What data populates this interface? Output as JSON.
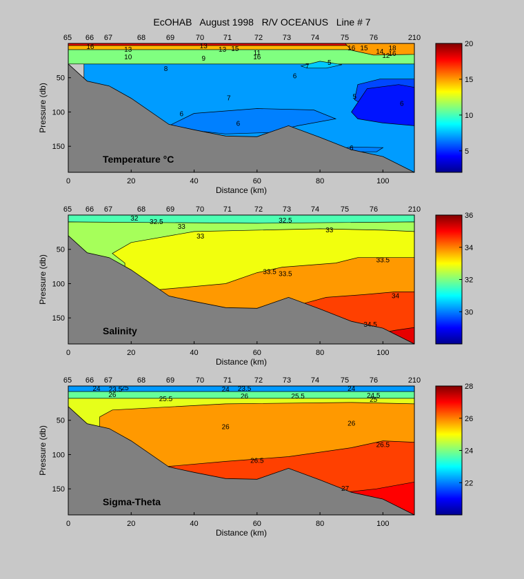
{
  "figure_title": "EcOHAB   August 1998   R/V OCEANUS   Line # 7",
  "colors": {
    "background": "#c8c8c8",
    "bathymetry": "#808080",
    "colormap": [
      "#00008f",
      "#0000ff",
      "#0080ff",
      "#00ffff",
      "#80ff80",
      "#ffff00",
      "#ff8000",
      "#ff0000",
      "#800000"
    ]
  },
  "chart_data": [
    {
      "type": "contour",
      "panel_label": "Temperature °C",
      "xlabel": "Distance (km)",
      "ylabel": "Pressure (db)",
      "xlim": [
        0,
        110
      ],
      "ylim": [
        188,
        0
      ],
      "x_ticks": [
        "0",
        "20",
        "40",
        "60",
        "80",
        "100"
      ],
      "y_ticks": [
        "50",
        "100",
        "150"
      ],
      "stations": [
        "65",
        "66",
        "67",
        "68",
        "69",
        "70",
        "71",
        "72",
        "73",
        "74",
        "75",
        "76",
        "210"
      ],
      "colorbar": {
        "min": 2,
        "max": 20,
        "ticks": [
          "5",
          "10",
          "15",
          "20"
        ]
      },
      "fields": [
        {
          "value": 5.5,
          "polygon": [
            [
              28,
              188
            ],
            [
              28,
              10
            ],
            [
              110,
              10
            ],
            [
              110,
              188
            ]
          ]
        },
        {
          "value": 7.0,
          "polygon": [
            [
              5,
              30
            ],
            [
              110,
              30
            ],
            [
              110,
              52
            ],
            [
              99,
              52
            ],
            [
              92,
              60
            ],
            [
              91,
              82
            ],
            [
              96,
              96
            ],
            [
              110,
              96
            ],
            [
              110,
              188
            ],
            [
              5,
              188
            ]
          ]
        },
        {
          "value": 11.0,
          "polygon": [
            [
              0,
              0
            ],
            [
              110,
              0
            ],
            [
              110,
              30
            ],
            [
              0,
              30
            ]
          ]
        },
        {
          "value": 14.5,
          "polygon": [
            [
              0,
              0
            ],
            [
              110,
              0
            ],
            [
              110,
              9
            ],
            [
              0,
              9
            ]
          ]
        },
        {
          "value": 18.0,
          "polygon": [
            [
              0,
              0
            ],
            [
              110,
              0
            ],
            [
              110,
              3
            ],
            [
              0,
              3
            ]
          ]
        },
        {
          "value": 6.5,
          "polygon": [
            [
              32,
              120
            ],
            [
              40,
              102
            ],
            [
              60,
              95
            ],
            [
              78,
              97
            ],
            [
              85,
              110
            ],
            [
              73,
              120
            ],
            [
              64,
              130
            ],
            [
              50,
              132
            ],
            [
              38,
              126
            ]
          ]
        },
        {
          "value": 4.6,
          "polygon": [
            [
              90,
              100
            ],
            [
              95,
              66
            ],
            [
              105,
              60
            ],
            [
              110,
              64
            ],
            [
              110,
              120
            ],
            [
              100,
              116
            ],
            [
              92,
              110
            ]
          ]
        },
        {
          "value": 6.5,
          "polygon": [
            [
              84,
              155
            ],
            [
              90,
              151
            ],
            [
              100,
              152
            ],
            [
              98,
              158
            ],
            [
              86,
              158
            ]
          ]
        },
        {
          "value": 7.8,
          "polygon": [
            [
              74,
              33
            ],
            [
              80,
              26
            ],
            [
              87,
              31
            ],
            [
              82,
              36
            ],
            [
              76,
              36
            ]
          ]
        },
        {
          "value": 15.0,
          "polygon": [
            [
              88,
              0
            ],
            [
              110,
              0
            ],
            [
              110,
              16
            ],
            [
              97,
              17
            ],
            [
              90,
              10
            ]
          ]
        }
      ],
      "contour_labels": [
        {
          "text": "16",
          "x": 7,
          "y": 5
        },
        {
          "text": "13",
          "x": 19,
          "y": 9
        },
        {
          "text": "10",
          "x": 19,
          "y": 20
        },
        {
          "text": "13",
          "x": 43,
          "y": 4
        },
        {
          "text": "13",
          "x": 49,
          "y": 9
        },
        {
          "text": "15",
          "x": 53,
          "y": 8
        },
        {
          "text": "11",
          "x": 60,
          "y": 14
        },
        {
          "text": "16",
          "x": 60,
          "y": 20
        },
        {
          "text": "9",
          "x": 43,
          "y": 22
        },
        {
          "text": "8",
          "x": 31,
          "y": 37
        },
        {
          "text": "7",
          "x": 76,
          "y": 33
        },
        {
          "text": "6",
          "x": 72,
          "y": 48
        },
        {
          "text": "5",
          "x": 83,
          "y": 28
        },
        {
          "text": "16",
          "x": 90,
          "y": 7
        },
        {
          "text": "15",
          "x": 94,
          "y": 7
        },
        {
          "text": "14",
          "x": 99,
          "y": 12
        },
        {
          "text": "12",
          "x": 101,
          "y": 18
        },
        {
          "text": "18",
          "x": 103,
          "y": 7
        },
        {
          "text": "16",
          "x": 103,
          "y": 15
        },
        {
          "text": "7",
          "x": 51,
          "y": 80
        },
        {
          "text": "6",
          "x": 36,
          "y": 103
        },
        {
          "text": "6",
          "x": 54,
          "y": 117
        },
        {
          "text": "5",
          "x": 91,
          "y": 78
        },
        {
          "text": "6",
          "x": 106,
          "y": 88
        },
        {
          "text": "6",
          "x": 90,
          "y": 153
        }
      ]
    },
    {
      "type": "contour",
      "panel_label": "Salinity",
      "xlabel": "Distance (km)",
      "ylabel": "Pressure (db)",
      "xlim": [
        0,
        110
      ],
      "ylim": [
        188,
        0
      ],
      "x_ticks": [
        "0",
        "20",
        "40",
        "60",
        "80",
        "100"
      ],
      "y_ticks": [
        "50",
        "100",
        "150"
      ],
      "stations": [
        "65",
        "66",
        "67",
        "68",
        "69",
        "70",
        "71",
        "72",
        "73",
        "74",
        "75",
        "76",
        "210"
      ],
      "colorbar": {
        "min": 28,
        "max": 36,
        "ticks": [
          "30",
          "32",
          "34",
          "36"
        ]
      },
      "fields": [
        {
          "value": 31.6,
          "polygon": [
            [
              0,
              0
            ],
            [
              110,
              0
            ],
            [
              110,
              188
            ],
            [
              0,
              188
            ]
          ]
        },
        {
          "value": 32.3,
          "polygon": [
            [
              0,
              10
            ],
            [
              60,
              12
            ],
            [
              110,
              10
            ],
            [
              110,
              188
            ],
            [
              0,
              188
            ]
          ]
        },
        {
          "value": 32.9,
          "polygon": [
            [
              18,
              70
            ],
            [
              14,
              56
            ],
            [
              20,
              40
            ],
            [
              40,
              24
            ],
            [
              80,
              20
            ],
            [
              100,
              22
            ],
            [
              110,
              24
            ],
            [
              110,
              188
            ],
            [
              18,
              188
            ]
          ]
        },
        {
          "value": 33.8,
          "polygon": [
            [
              26,
              110
            ],
            [
              50,
              100
            ],
            [
              60,
              84
            ],
            [
              68,
              76
            ],
            [
              85,
              70
            ],
            [
              92,
              62
            ],
            [
              110,
              62
            ],
            [
              110,
              188
            ],
            [
              26,
              188
            ]
          ]
        },
        {
          "value": 34.5,
          "polygon": [
            [
              74,
              130
            ],
            [
              82,
              120
            ],
            [
              94,
              116
            ],
            [
              104,
              112
            ],
            [
              110,
              112
            ],
            [
              110,
              188
            ],
            [
              74,
              188
            ]
          ]
        },
        {
          "value": 35.2,
          "polygon": [
            [
              96,
              175
            ],
            [
              104,
              168
            ],
            [
              110,
              164
            ],
            [
              110,
              188
            ],
            [
              96,
              188
            ]
          ]
        }
      ],
      "contour_labels": [
        {
          "text": "32",
          "x": 21,
          "y": 5
        },
        {
          "text": "32.5",
          "x": 28,
          "y": 10
        },
        {
          "text": "33",
          "x": 36,
          "y": 17
        },
        {
          "text": "33",
          "x": 42,
          "y": 31
        },
        {
          "text": "32.5",
          "x": 69,
          "y": 8
        },
        {
          "text": "33",
          "x": 83,
          "y": 22
        },
        {
          "text": "33.5",
          "x": 64,
          "y": 83
        },
        {
          "text": "33.5",
          "x": 69,
          "y": 86
        },
        {
          "text": "33.5",
          "x": 100,
          "y": 66
        },
        {
          "text": "34",
          "x": 104,
          "y": 118
        },
        {
          "text": "34.5",
          "x": 96,
          "y": 160
        }
      ]
    },
    {
      "type": "contour",
      "panel_label": "Sigma-Theta",
      "xlabel": "Distance (km)",
      "ylabel": "Pressure (db)",
      "xlim": [
        0,
        110
      ],
      "ylim": [
        188,
        0
      ],
      "x_ticks": [
        "0",
        "20",
        "40",
        "60",
        "80",
        "100"
      ],
      "y_ticks": [
        "50",
        "100",
        "150"
      ],
      "stations": [
        "65",
        "66",
        "67",
        "68",
        "69",
        "70",
        "71",
        "72",
        "73",
        "74",
        "75",
        "76",
        "210"
      ],
      "colorbar": {
        "min": 20,
        "max": 28,
        "ticks": [
          "22",
          "24",
          "26",
          "28"
        ]
      },
      "fields": [
        {
          "value": 22.2,
          "polygon": [
            [
              0,
              0
            ],
            [
              110,
              0
            ],
            [
              110,
              188
            ],
            [
              0,
              188
            ]
          ]
        },
        {
          "value": 23.8,
          "polygon": [
            [
              0,
              8
            ],
            [
              110,
              8
            ],
            [
              110,
              188
            ],
            [
              0,
              188
            ]
          ]
        },
        {
          "value": 24.8,
          "polygon": [
            [
              0,
              18
            ],
            [
              110,
              18
            ],
            [
              110,
              188
            ],
            [
              0,
              188
            ]
          ]
        },
        {
          "value": 25.8,
          "polygon": [
            [
              10,
              45
            ],
            [
              14,
              35
            ],
            [
              50,
              26
            ],
            [
              90,
              24
            ],
            [
              110,
              26
            ],
            [
              110,
              188
            ],
            [
              10,
              188
            ]
          ]
        },
        {
          "value": 26.5,
          "polygon": [
            [
              30,
              118
            ],
            [
              50,
              110
            ],
            [
              70,
              103
            ],
            [
              90,
              90
            ],
            [
              100,
              80
            ],
            [
              110,
              82
            ],
            [
              110,
              188
            ],
            [
              30,
              188
            ]
          ]
        },
        {
          "value": 27.0,
          "polygon": [
            [
              88,
              155
            ],
            [
              98,
              150
            ],
            [
              110,
              140
            ],
            [
              110,
              188
            ],
            [
              88,
              188
            ]
          ]
        }
      ],
      "contour_labels": [
        {
          "text": "24",
          "x": 9,
          "y": 4
        },
        {
          "text": "23.5",
          "x": 15,
          "y": 5
        },
        {
          "text": "25",
          "x": 18,
          "y": 3
        },
        {
          "text": "26",
          "x": 14,
          "y": 13
        },
        {
          "text": "25.5",
          "x": 31,
          "y": 19
        },
        {
          "text": "24",
          "x": 50,
          "y": 5
        },
        {
          "text": "23.5",
          "x": 56,
          "y": 4
        },
        {
          "text": "26",
          "x": 56,
          "y": 15
        },
        {
          "text": "25.5",
          "x": 73,
          "y": 15
        },
        {
          "text": "24",
          "x": 90,
          "y": 4
        },
        {
          "text": "24.5",
          "x": 97,
          "y": 14
        },
        {
          "text": "25",
          "x": 97,
          "y": 20
        },
        {
          "text": "26",
          "x": 50,
          "y": 60
        },
        {
          "text": "26",
          "x": 90,
          "y": 55
        },
        {
          "text": "26.5",
          "x": 60,
          "y": 109
        },
        {
          "text": "26.5",
          "x": 100,
          "y": 86
        },
        {
          "text": "27",
          "x": 88,
          "y": 150
        }
      ]
    }
  ]
}
